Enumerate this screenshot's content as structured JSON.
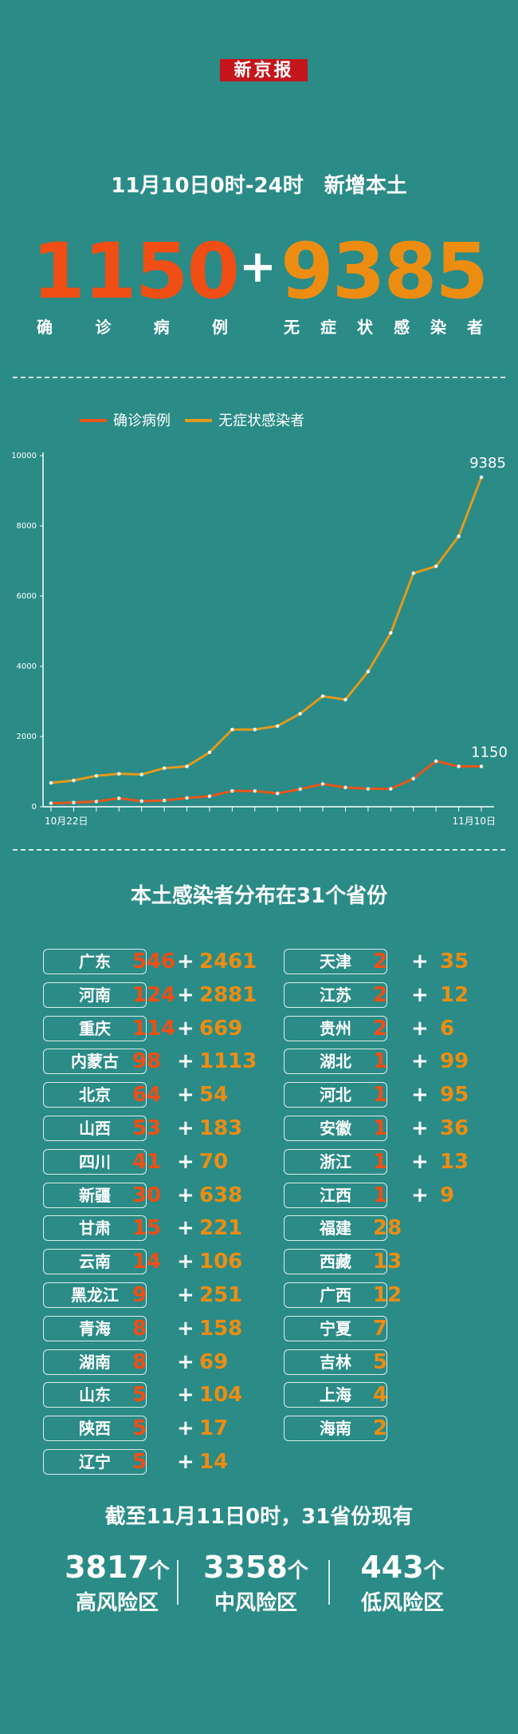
{
  "brand": "新京报",
  "headline": "11月10日0时-24时　新增本土",
  "totals": {
    "confirmed": "1150",
    "plus": "+",
    "asymptomatic": "9385",
    "confirmed_label": [
      "确",
      "诊",
      "病",
      "例"
    ],
    "asymptomatic_label": [
      "无",
      "症",
      "状",
      "感",
      "染",
      "者"
    ]
  },
  "colors": {
    "background": "#2a8b87",
    "confirmed": "#f04e14",
    "asymptomatic": "#ec8d12",
    "line_confirmed": "#e8561a",
    "line_asym": "#e39a1b"
  },
  "chart_data": {
    "type": "line",
    "legend": [
      "确诊病例",
      "无症状感染者"
    ],
    "legend_position": "top-left",
    "x_labels_shown": {
      "first": "10月22日",
      "last": "11月10日"
    },
    "x_count": 20,
    "ylim": [
      0,
      10000
    ],
    "yticks": [
      "0",
      "2000",
      "4000",
      "6000",
      "8000",
      "10000"
    ],
    "series": [
      {
        "name": "确诊病例",
        "values": [
          100,
          120,
          150,
          240,
          160,
          180,
          250,
          300,
          450,
          450,
          380,
          500,
          650,
          550,
          510,
          510,
          800,
          1300,
          1150,
          1150
        ]
      },
      {
        "name": "无症状感染者",
        "values": [
          680,
          750,
          880,
          940,
          920,
          1100,
          1150,
          1550,
          2200,
          2200,
          2300,
          2650,
          3150,
          3050,
          3850,
          4950,
          6650,
          6850,
          7700,
          9385
        ]
      }
    ],
    "end_labels": {
      "confirmed": "1150",
      "asymptomatic": "9385"
    }
  },
  "section_title": "本土感染者分布在31个省份",
  "provinces_left": [
    {
      "name": "广东",
      "confirmed": "546",
      "asym": "2461"
    },
    {
      "name": "河南",
      "confirmed": "124",
      "asym": "2881"
    },
    {
      "name": "重庆",
      "confirmed": "114",
      "asym": "669"
    },
    {
      "name": "内蒙古",
      "confirmed": "98",
      "asym": "1113"
    },
    {
      "name": "北京",
      "confirmed": "64",
      "asym": "54"
    },
    {
      "name": "山西",
      "confirmed": "53",
      "asym": "183"
    },
    {
      "name": "四川",
      "confirmed": "41",
      "asym": "70"
    },
    {
      "name": "新疆",
      "confirmed": "30",
      "asym": "638"
    },
    {
      "name": "甘肃",
      "confirmed": "15",
      "asym": "221"
    },
    {
      "name": "云南",
      "confirmed": "14",
      "asym": "106"
    },
    {
      "name": "黑龙江",
      "confirmed": "9",
      "asym": "251"
    },
    {
      "name": "青海",
      "confirmed": "8",
      "asym": "158"
    },
    {
      "name": "湖南",
      "confirmed": "8",
      "asym": "69"
    },
    {
      "name": "山东",
      "confirmed": "5",
      "asym": "104"
    },
    {
      "name": "陕西",
      "confirmed": "5",
      "asym": "17"
    },
    {
      "name": "辽宁",
      "confirmed": "5",
      "asym": "14"
    }
  ],
  "provinces_right": [
    {
      "name": "天津",
      "confirmed": "2",
      "asym": "35"
    },
    {
      "name": "江苏",
      "confirmed": "2",
      "asym": "12"
    },
    {
      "name": "贵州",
      "confirmed": "2",
      "asym": "6"
    },
    {
      "name": "湖北",
      "confirmed": "1",
      "asym": "99"
    },
    {
      "name": "河北",
      "confirmed": "1",
      "asym": "95"
    },
    {
      "name": "安徽",
      "confirmed": "1",
      "asym": "36"
    },
    {
      "name": "浙江",
      "confirmed": "1",
      "asym": "13"
    },
    {
      "name": "江西",
      "confirmed": "1",
      "asym": "9"
    },
    {
      "name": "福建",
      "confirmed": "",
      "asym": "28"
    },
    {
      "name": "西藏",
      "confirmed": "",
      "asym": "13"
    },
    {
      "name": "广西",
      "confirmed": "",
      "asym": "12"
    },
    {
      "name": "宁夏",
      "confirmed": "",
      "asym": "7"
    },
    {
      "name": "吉林",
      "confirmed": "",
      "asym": "5"
    },
    {
      "name": "上海",
      "confirmed": "",
      "asym": "4"
    },
    {
      "name": "海南",
      "confirmed": "",
      "asym": "2"
    }
  ],
  "as_of": "截至11月11日0时，31省份现有",
  "risk_areas": [
    {
      "num": "3817",
      "unit": "个",
      "label": "高风险区"
    },
    {
      "num": "3358",
      "unit": "个",
      "label": "中风险区"
    },
    {
      "num": "443",
      "unit": "个",
      "label": "低风险区"
    }
  ]
}
